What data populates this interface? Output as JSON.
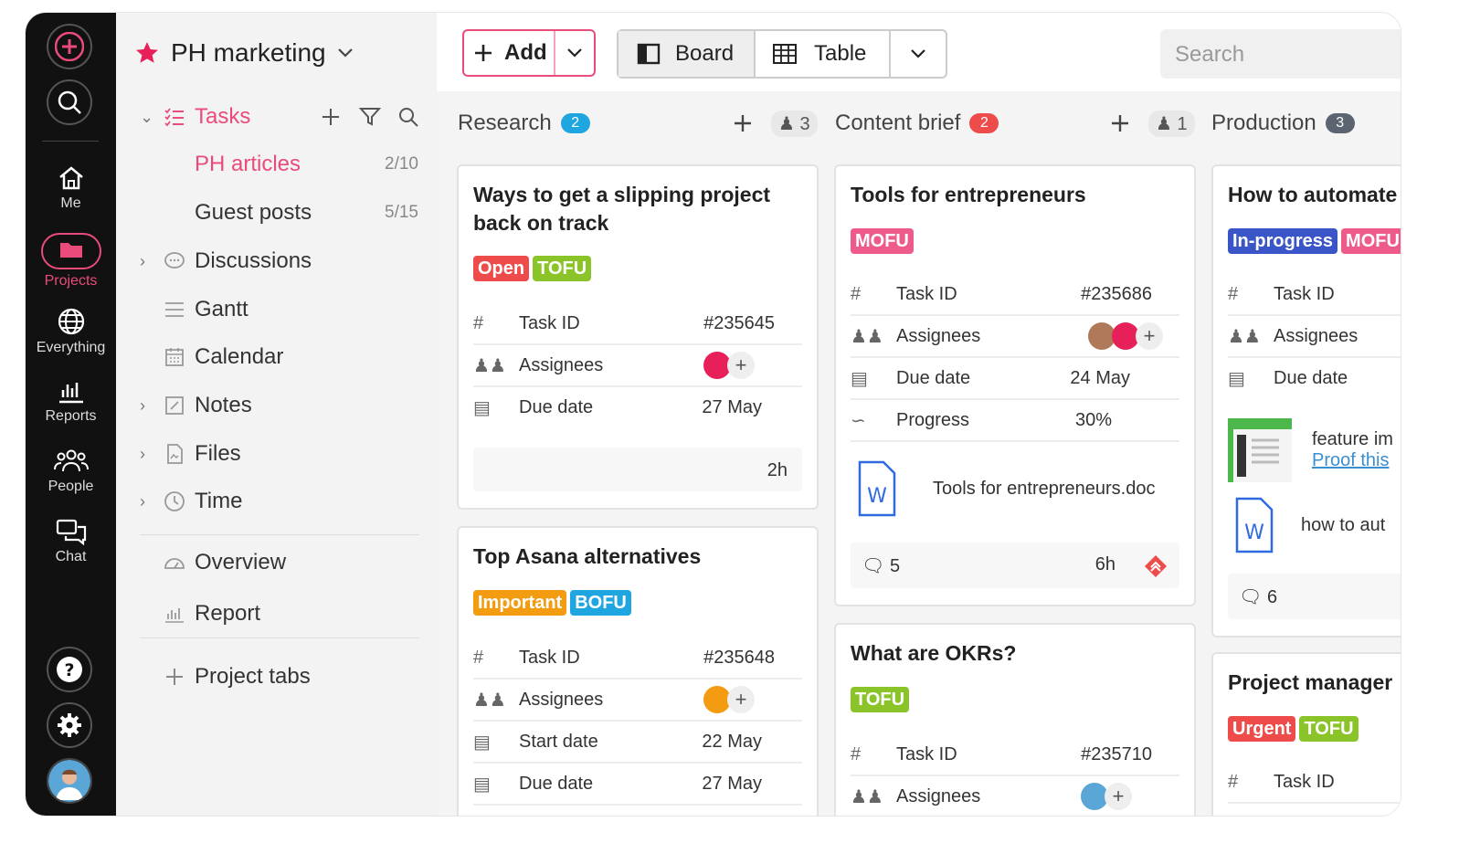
{
  "rail": {
    "items": [
      {
        "label": "Me",
        "icon": "home-icon"
      },
      {
        "label": "Projects",
        "icon": "folder-icon"
      },
      {
        "label": "Everything",
        "icon": "globe-icon"
      },
      {
        "label": "Reports",
        "icon": "bar-chart-icon"
      },
      {
        "label": "People",
        "icon": "people-icon"
      },
      {
        "label": "Chat",
        "icon": "chat-icon"
      }
    ]
  },
  "project": {
    "name": "PH marketing"
  },
  "nav": {
    "tasks_label": "Tasks",
    "folders": [
      {
        "label": "PH articles",
        "count": "2/10"
      },
      {
        "label": "Guest posts",
        "count": "5/15"
      }
    ],
    "items": [
      {
        "label": "Discussions"
      },
      {
        "label": "Gantt"
      },
      {
        "label": "Calendar"
      },
      {
        "label": "Notes"
      },
      {
        "label": "Files"
      },
      {
        "label": "Time"
      },
      {
        "label": "Overview"
      },
      {
        "label": "Report"
      }
    ],
    "project_tabs": "Project tabs"
  },
  "toolbar": {
    "add_label": "Add",
    "board_label": "Board",
    "table_label": "Table",
    "search_placeholder": "Search"
  },
  "columns": [
    {
      "name": "Research",
      "count": "2",
      "count_color": "#1fa5e0",
      "members": "3"
    },
    {
      "name": "Content brief",
      "count": "2",
      "count_color": "#ee4b4b",
      "members": "1"
    },
    {
      "name": "Production",
      "count": "3",
      "count_color": "#5b6470"
    }
  ],
  "colors": {
    "accent": "#e94c7a",
    "red": "#ee4b4b",
    "green": "#8bc428",
    "orange": "#f39c12",
    "blue": "#1fa5e0",
    "navy": "#3a55c7",
    "pink": "#ee5a8a"
  },
  "cards": {
    "c1": {
      "title": "Ways to get a slipping project back on track",
      "tags": [
        "Open",
        "TOFU"
      ],
      "task_id_label": "Task ID",
      "task_id": "#235645",
      "assignees_label": "Assignees",
      "due_label": "Due date",
      "due": "27 May",
      "time": "2h"
    },
    "c2": {
      "title": "Top Asana alternatives",
      "tags": [
        "Important",
        "BOFU"
      ],
      "task_id_label": "Task ID",
      "task_id": "#235648",
      "assignees_label": "Assignees",
      "start_label": "Start date",
      "start": "22 May",
      "due_label": "Due date",
      "due": "27 May"
    },
    "c3": {
      "title": "Tools for entrepreneurs",
      "tags": [
        "MOFU"
      ],
      "task_id_label": "Task ID",
      "task_id": "#235686",
      "assignees_label": "Assignees",
      "due_label": "Due date",
      "due": "24 May",
      "progress_label": "Progress",
      "progress": "30%",
      "file": "Tools for entrepreneurs.doc",
      "comments": "5",
      "time": "6h"
    },
    "c4": {
      "title": "What are OKRs?",
      "tags": [
        "TOFU"
      ],
      "task_id_label": "Task ID",
      "task_id": "#235710",
      "assignees_label": "Assignees"
    },
    "c5": {
      "title": "How to automate",
      "tags": [
        "In-progress",
        "MOFU"
      ],
      "task_id_label": "Task ID",
      "assignees_label": "Assignees",
      "due_label": "Due date",
      "attach1_line1": "feature im",
      "attach1_line2": "Proof this",
      "attach2": "how to aut",
      "comments": "6"
    },
    "c6": {
      "title": "Project manager",
      "tags": [
        "Urgent",
        "TOFU"
      ],
      "task_id_label": "Task ID"
    }
  }
}
